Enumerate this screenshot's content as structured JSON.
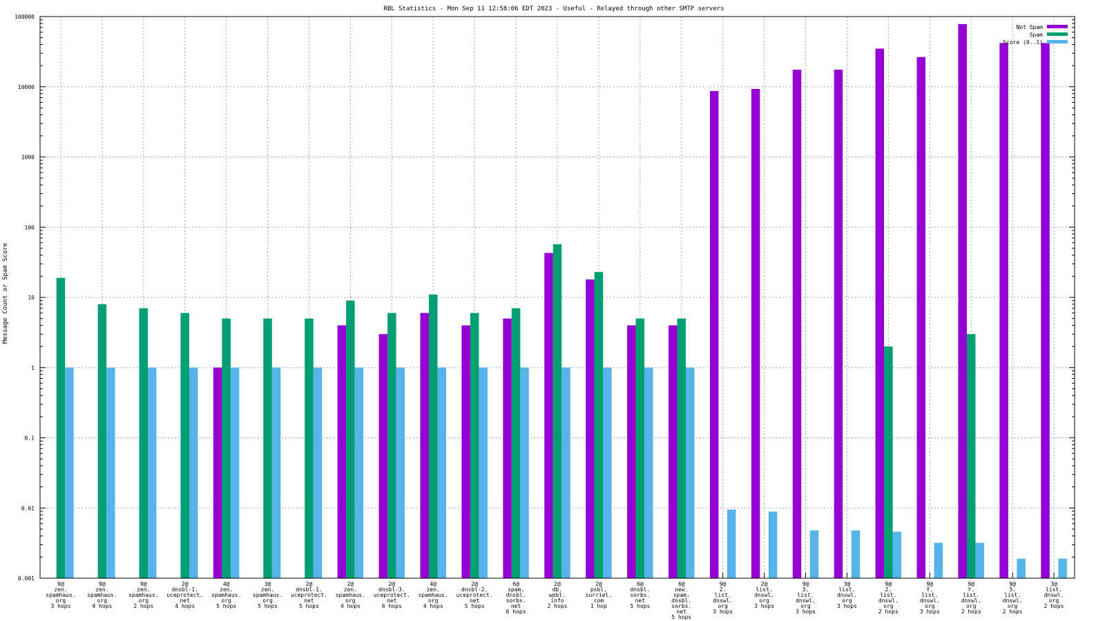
{
  "chart_data": {
    "type": "bar",
    "title": "RBL Statistics - Mon Sep 11 12:58:06 EDT 2023 - Useful - Relayed through other SMTP servers",
    "ylabel": "Message Count or Spam Score",
    "xlabel": "",
    "yscale": "log",
    "ylim": [
      0.001,
      100000
    ],
    "yticks": [
      "0.001",
      "0.01",
      "0.1",
      "1",
      "10",
      "100",
      "1000",
      "10000",
      "100000"
    ],
    "grid": true,
    "legend_position": "top-right",
    "categories": [
      [
        "9@",
        "zen.",
        "spamhaus.",
        "org",
        "3 hops"
      ],
      [
        "9@",
        "zen.",
        "spamhaus.",
        "org",
        "4 hops"
      ],
      [
        "9@",
        "zen.",
        "spamhaus.",
        "org",
        "2 hops"
      ],
      [
        "2@",
        "dnsbl-1.",
        "uceprotect.",
        "net",
        "4 hops"
      ],
      [
        "4@",
        "zen.",
        "spamhaus.",
        "org",
        "5 hops"
      ],
      [
        "3@",
        "zen.",
        "spamhaus.",
        "org",
        "5 hops"
      ],
      [
        "2@",
        "dnsbl-1.",
        "uceprotect.",
        "net",
        "5 hops"
      ],
      [
        "2@",
        "zen.",
        "spamhaus.",
        "org",
        "4 hops"
      ],
      [
        "2@",
        "dnsbl-3.",
        "uceprotect.",
        "net",
        "6 hops"
      ],
      [
        "4@",
        "zen.",
        "spamhaus.",
        "org",
        "4 hops"
      ],
      [
        "2@",
        "dnsbl-2.",
        "uceprotect.",
        "net",
        "5 hops"
      ],
      [
        "6@",
        "spam.",
        "dnsbl.",
        "sorbs.",
        "net",
        "6 hops"
      ],
      [
        "2@",
        "db.",
        "wpbl.",
        "info",
        "2 hops"
      ],
      [
        "2@",
        "psbl.",
        "surriel.",
        "com",
        "1 hop"
      ],
      [
        "6@",
        "dnsbl.",
        "sorbs.",
        "net",
        "5 hops"
      ],
      [
        "6@",
        "new.",
        "spam.",
        "dnsbl.",
        "sorbs.",
        "net",
        "5 hops"
      ],
      [
        "9@",
        "2.",
        "list.",
        "dnswl.",
        "org",
        "3 hops"
      ],
      [
        "2@",
        "list.",
        "dnswl.",
        "org",
        "3 hops"
      ],
      [
        "9@",
        "3.",
        "list.",
        "dnswl.",
        "org",
        "3 hops"
      ],
      [
        "3@",
        "list.",
        "dnswl.",
        "org",
        "3 hops"
      ],
      [
        "9@",
        "2.",
        "list.",
        "dnswl.",
        "org",
        "2 hops"
      ],
      [
        "9@",
        "Y.",
        "list.",
        "dnswl.",
        "org",
        "3 hops"
      ],
      [
        "9@",
        "Y.",
        "list.",
        "dnswl.",
        "org",
        "2 hops"
      ],
      [
        "9@",
        "3.",
        "list.",
        "dnswl.",
        "org",
        "2 hops"
      ],
      [
        "3@",
        "list.",
        "dnswl.",
        "org",
        "2 hops"
      ]
    ],
    "series": [
      {
        "name": "Not Spam",
        "color": "#9400d3",
        "values": [
          null,
          null,
          null,
          null,
          1,
          null,
          null,
          4,
          3,
          6,
          4,
          5,
          43,
          18,
          4,
          4,
          8700,
          9300,
          17500,
          17500,
          35000,
          26500,
          78000,
          42000,
          42000
        ]
      },
      {
        "name": "Spam",
        "color": "#009e73",
        "values": [
          19,
          8,
          7,
          6,
          5,
          5,
          5,
          9,
          6,
          11,
          6,
          7,
          57,
          23,
          5,
          5,
          null,
          null,
          null,
          null,
          2,
          null,
          3,
          null,
          null
        ]
      },
      {
        "name": "Score (0..1)",
        "color": "#56b4e9",
        "values": [
          1,
          1,
          1,
          1,
          1,
          1,
          1,
          1,
          1,
          1,
          1,
          1,
          1,
          1,
          1,
          1,
          0.0095,
          0.0089,
          0.0048,
          0.0048,
          0.0046,
          0.0032,
          0.0032,
          0.0019,
          0.0019
        ]
      }
    ]
  }
}
